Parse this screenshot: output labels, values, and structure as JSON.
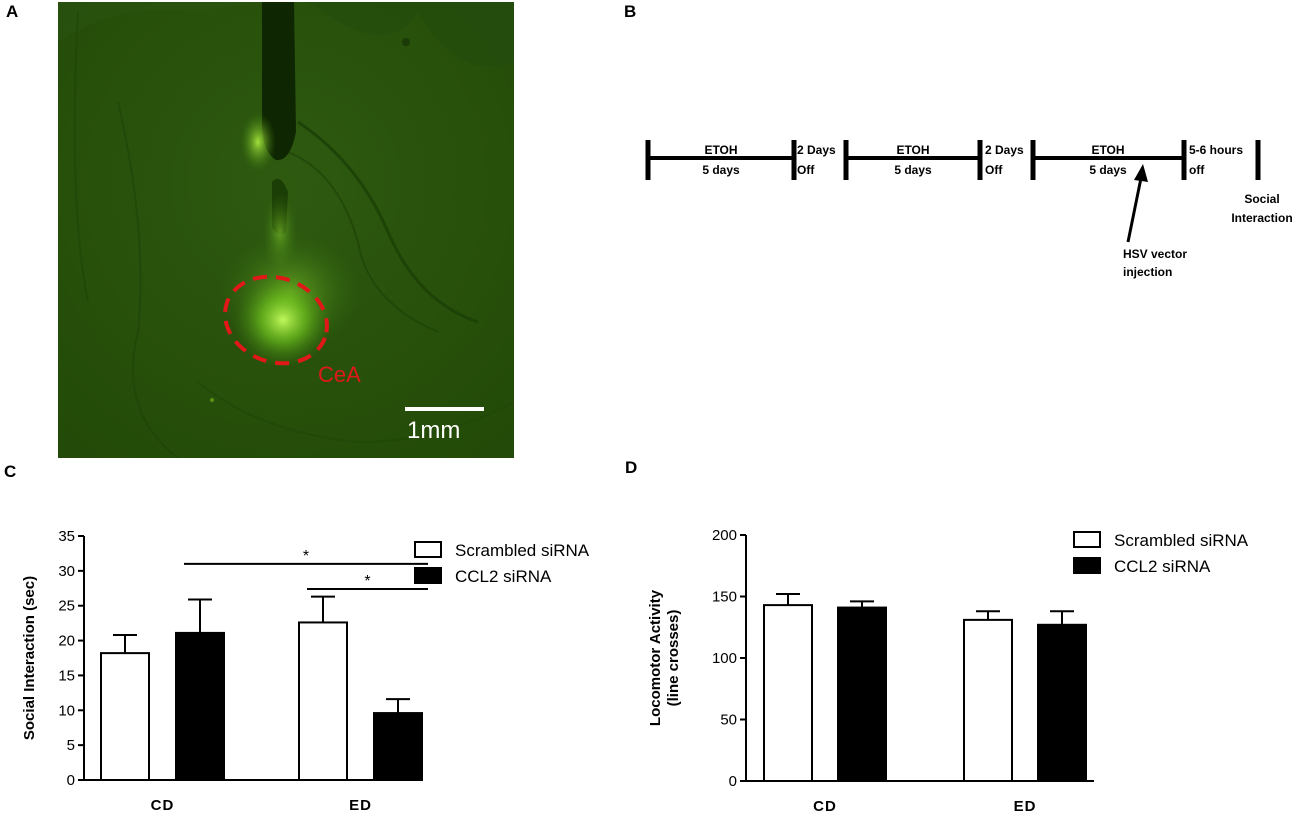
{
  "panels": {
    "A": {
      "label": "A",
      "region_label": "CeA",
      "scale_bar_label": "1mm"
    },
    "B": {
      "label": "B",
      "segments": [
        {
          "top": "ETOH",
          "bottom": "5 days"
        },
        {
          "top": "2 Days",
          "bottom": "Off"
        },
        {
          "top": "ETOH",
          "bottom": "5 days"
        },
        {
          "top": "2 Days",
          "bottom": "Off"
        },
        {
          "top": "ETOH",
          "bottom": "5 days"
        },
        {
          "top": "5-6 hours",
          "bottom": "off"
        }
      ],
      "end_label": [
        "Social",
        "Interaction"
      ],
      "arrow_label": [
        "HSV vector",
        "injection"
      ]
    },
    "C": {
      "label": "C"
    },
    "D": {
      "label": "D"
    }
  },
  "chart_data": [
    {
      "type": "bar",
      "panel": "C",
      "categories": [
        "CD",
        "ED"
      ],
      "series": [
        {
          "name": "Scrambled siRNA",
          "color": "#ffffff",
          "values": [
            18.2,
            22.6
          ],
          "errors": [
            2.6,
            3.7
          ]
        },
        {
          "name": "CCL2 siRNA",
          "color": "#000000",
          "values": [
            21.1,
            9.6
          ],
          "errors": [
            4.8,
            2.0
          ]
        }
      ],
      "ylabel": "Social Interaction (sec)",
      "ylim": [
        0,
        35
      ],
      "yticks": [
        "0",
        "5",
        "10",
        "15",
        "20",
        "25",
        "30",
        "35"
      ],
      "significance": [
        {
          "label": "*",
          "from": "CD.CCL2 siRNA",
          "to": "ED.CCL2 siRNA",
          "y": 31
        },
        {
          "label": "*",
          "from": "ED.Scrambled siRNA",
          "to": "ED.CCL2 siRNA",
          "y": 27.4
        }
      ],
      "legend_position": "top-right"
    },
    {
      "type": "bar",
      "panel": "D",
      "categories": [
        "CD",
        "ED"
      ],
      "series": [
        {
          "name": "Scrambled siRNA",
          "color": "#ffffff",
          "values": [
            143,
            131
          ],
          "errors": [
            9,
            7
          ]
        },
        {
          "name": "CCL2 siRNA",
          "color": "#000000",
          "values": [
            141,
            127
          ],
          "errors": [
            5,
            11
          ]
        }
      ],
      "ylabel": [
        "Locomotor Activity",
        "(line crosses)"
      ],
      "ylim": [
        0,
        200
      ],
      "yticks": [
        "0",
        "50",
        "100",
        "150",
        "200"
      ],
      "legend_position": "top-right"
    }
  ]
}
